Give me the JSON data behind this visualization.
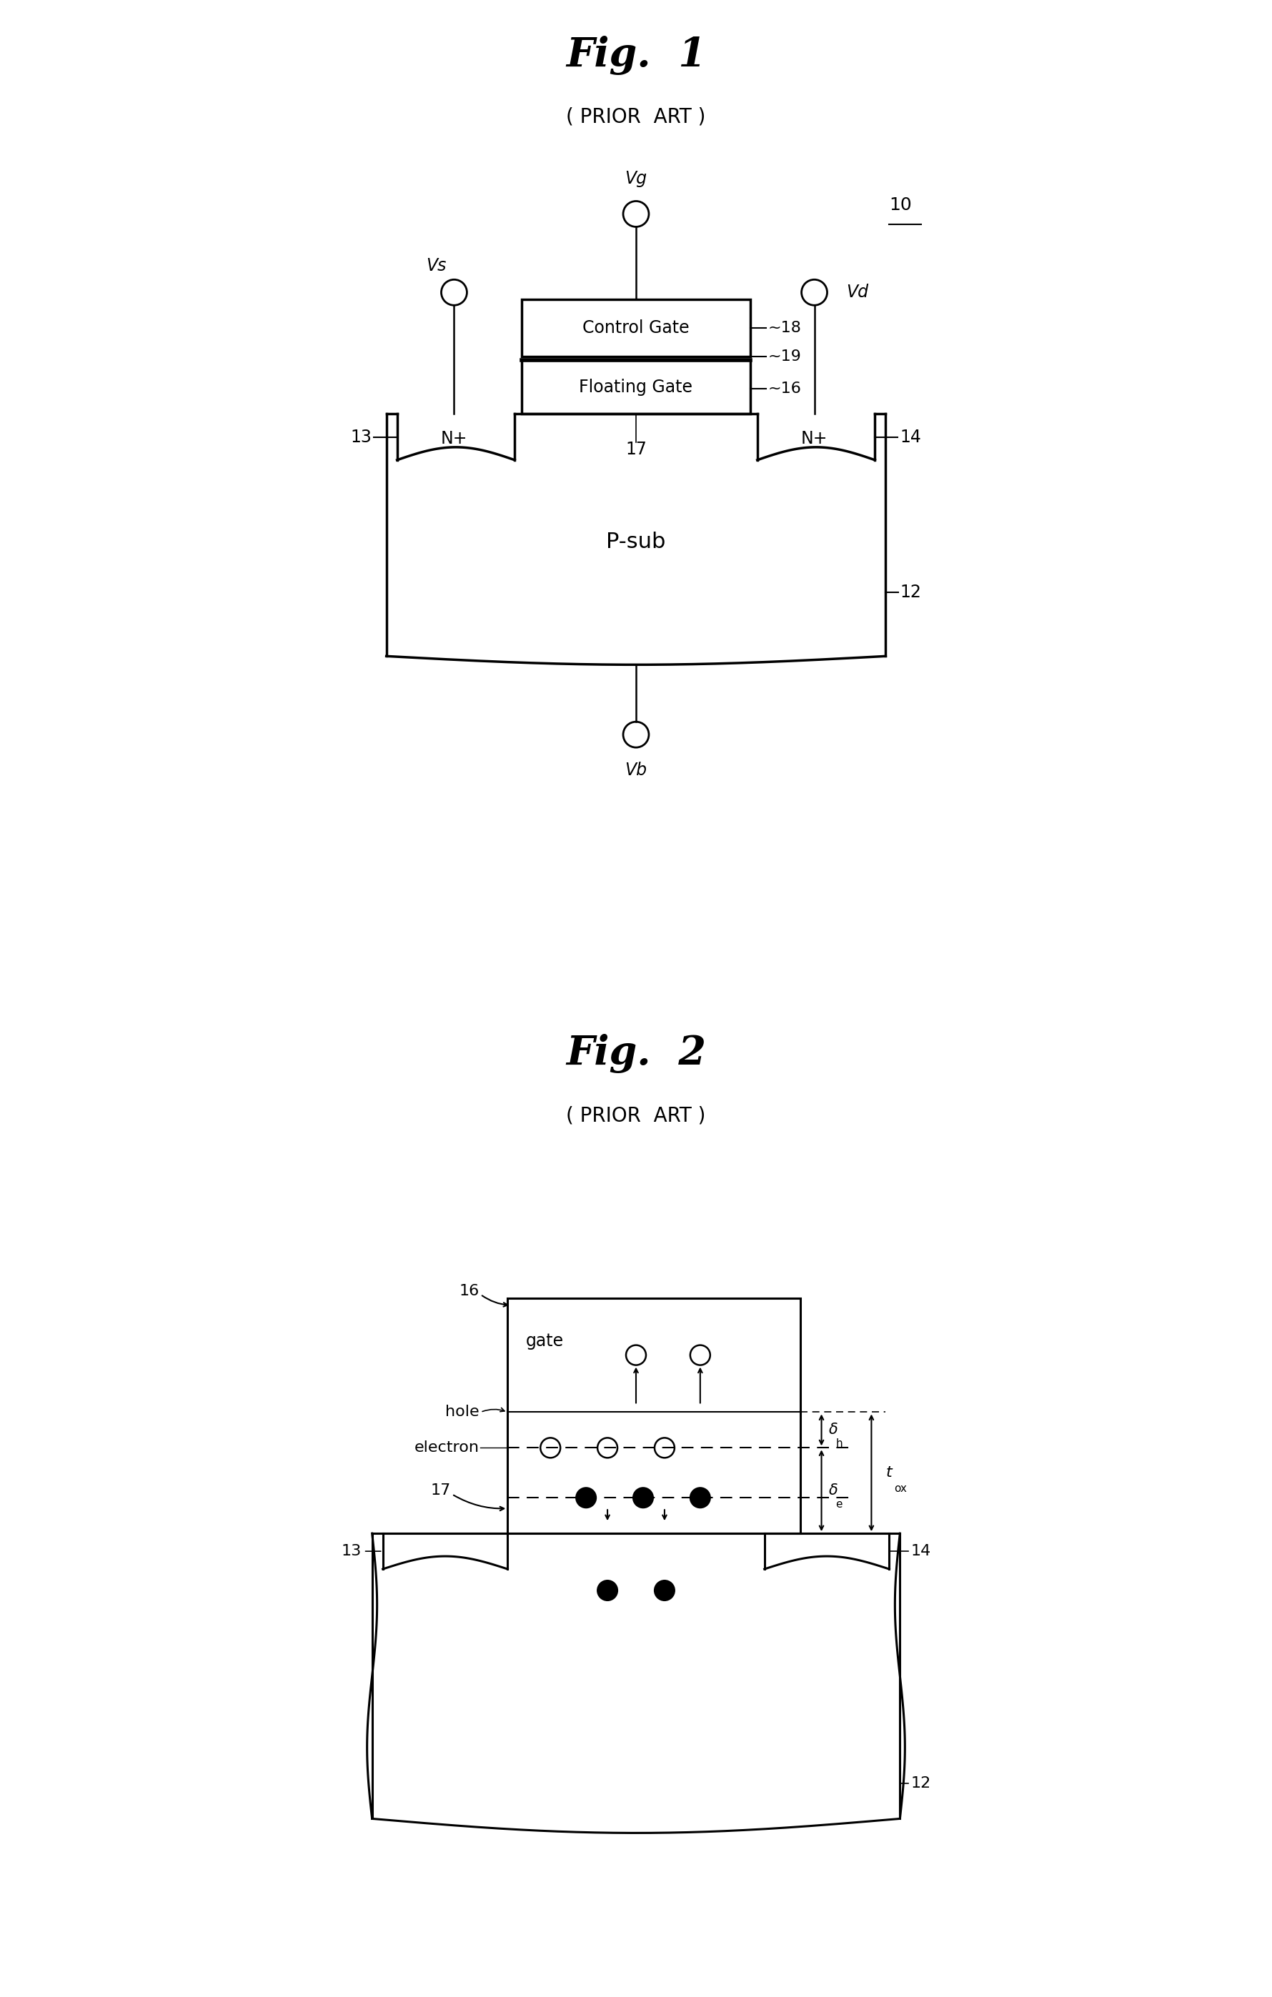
{
  "fig1_title": "Fig.  1",
  "fig2_title": "Fig.  2",
  "prior_art": "( PRIOR  ART )",
  "bg_color": "#ffffff",
  "fig1": {
    "label_10": "10",
    "label_12": "12",
    "label_13": "13",
    "label_14": "14",
    "label_16": "16",
    "label_17": "17",
    "label_18": "18",
    "label_19": "19",
    "label_Vg": "Vg",
    "label_Vs": "Vs",
    "label_Vd": "Vd",
    "label_Vb": "Vb",
    "label_Nplus_left": "N+",
    "label_Nplus_right": "N+",
    "label_Psub": "P-sub",
    "label_ControlGate": "Control Gate",
    "label_FloatingGate": "Floating Gate"
  },
  "fig2": {
    "label_12": "12",
    "label_13": "13",
    "label_14": "14",
    "label_16": "16",
    "label_17": "17",
    "label_gate": "gate",
    "label_hole": "hole",
    "label_electron": "electron",
    "label_tox": "t",
    "label_tox_sub": "ox",
    "label_delta_h": "δ",
    "label_delta_h_sub": "h",
    "label_delta_e": "δ",
    "label_delta_e_sub": "e"
  }
}
